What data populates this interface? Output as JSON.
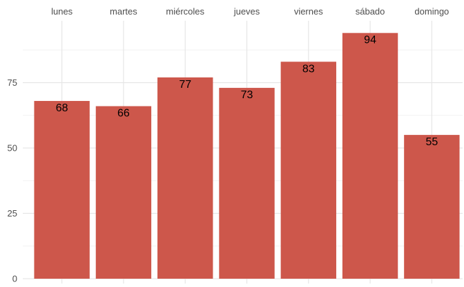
{
  "chart_data": {
    "type": "bar",
    "categories": [
      "lunes",
      "martes",
      "miércoles",
      "jueves",
      "viernes",
      "sábado",
      "domingo"
    ],
    "values": [
      68,
      66,
      77,
      73,
      83,
      94,
      55
    ],
    "title": "",
    "xlabel": "",
    "ylabel": "",
    "ylim": [
      0,
      100
    ],
    "y_ticks": [
      0,
      25,
      50,
      75
    ],
    "x_axis_position": "top",
    "grid": true,
    "legend": "none",
    "colors": {
      "bar": "#cd574b",
      "grid_major": "#e6e6e6",
      "grid_minor": "#f2f2f2",
      "tick_text": "#4d4d4d",
      "label_text": "#000000"
    }
  }
}
